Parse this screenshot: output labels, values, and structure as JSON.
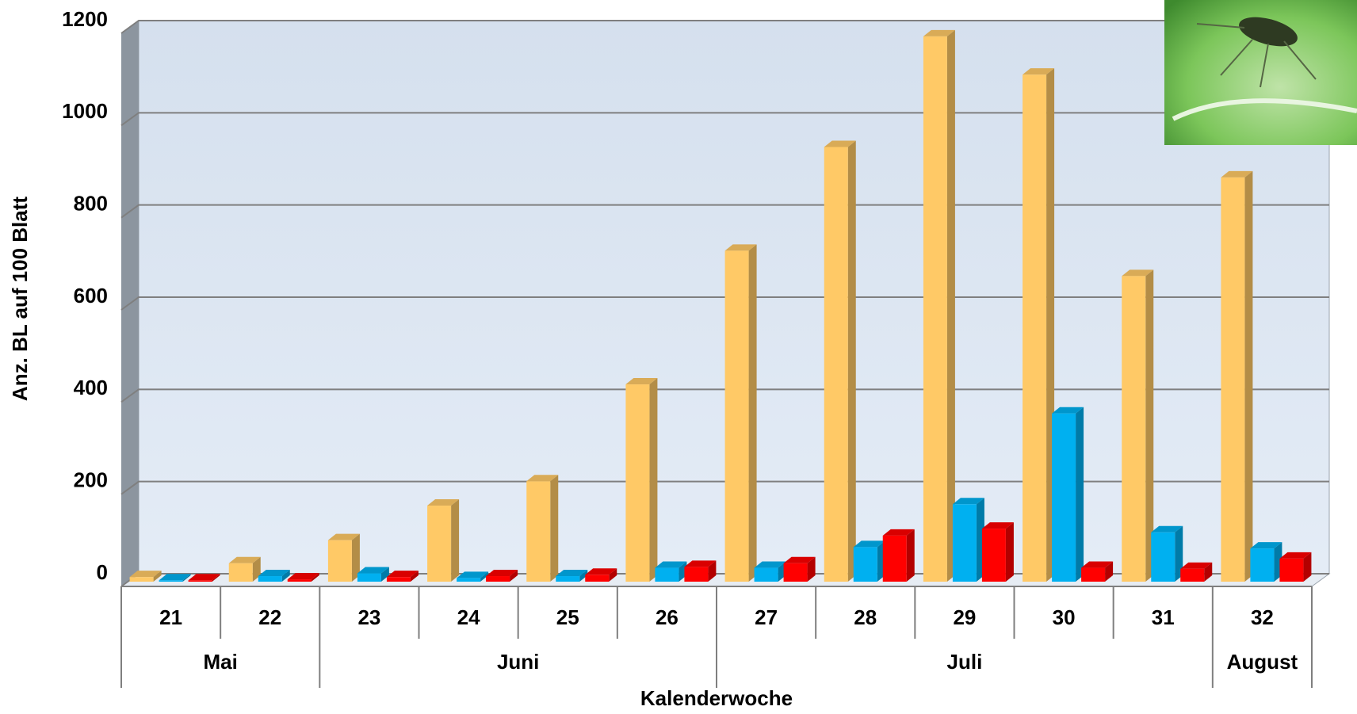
{
  "chart_data": {
    "type": "bar3d",
    "y_label": "Anz. BL auf 100 Blatt",
    "x_label": "Kalenderwoche",
    "groups": [
      {
        "label": "Mai",
        "categories": [
          "21",
          "22"
        ]
      },
      {
        "label": "Juni",
        "categories": [
          "23",
          "24",
          "25",
          "26"
        ]
      },
      {
        "label": "Juli",
        "categories": [
          "27",
          "28",
          "29",
          "30",
          "31"
        ]
      },
      {
        "label": "August",
        "categories": [
          "32"
        ]
      }
    ],
    "series": [
      {
        "color": "#FFC966",
        "values": [
          10,
          40,
          90,
          165,
          218,
          428,
          718,
          943,
          1183,
          1100,
          663,
          877
        ]
      },
      {
        "color": "#00B0F0",
        "values": [
          3,
          12,
          18,
          8,
          12,
          30,
          30,
          75,
          168,
          365,
          107,
          72
        ]
      },
      {
        "color": "#FF0000",
        "values": [
          3,
          5,
          10,
          12,
          15,
          32,
          40,
          100,
          115,
          30,
          28,
          50
        ]
      }
    ],
    "ylim": [
      0,
      1200
    ],
    "yticks": [
      0,
      200,
      400,
      600,
      800,
      1000,
      1200
    ],
    "grid": true
  }
}
